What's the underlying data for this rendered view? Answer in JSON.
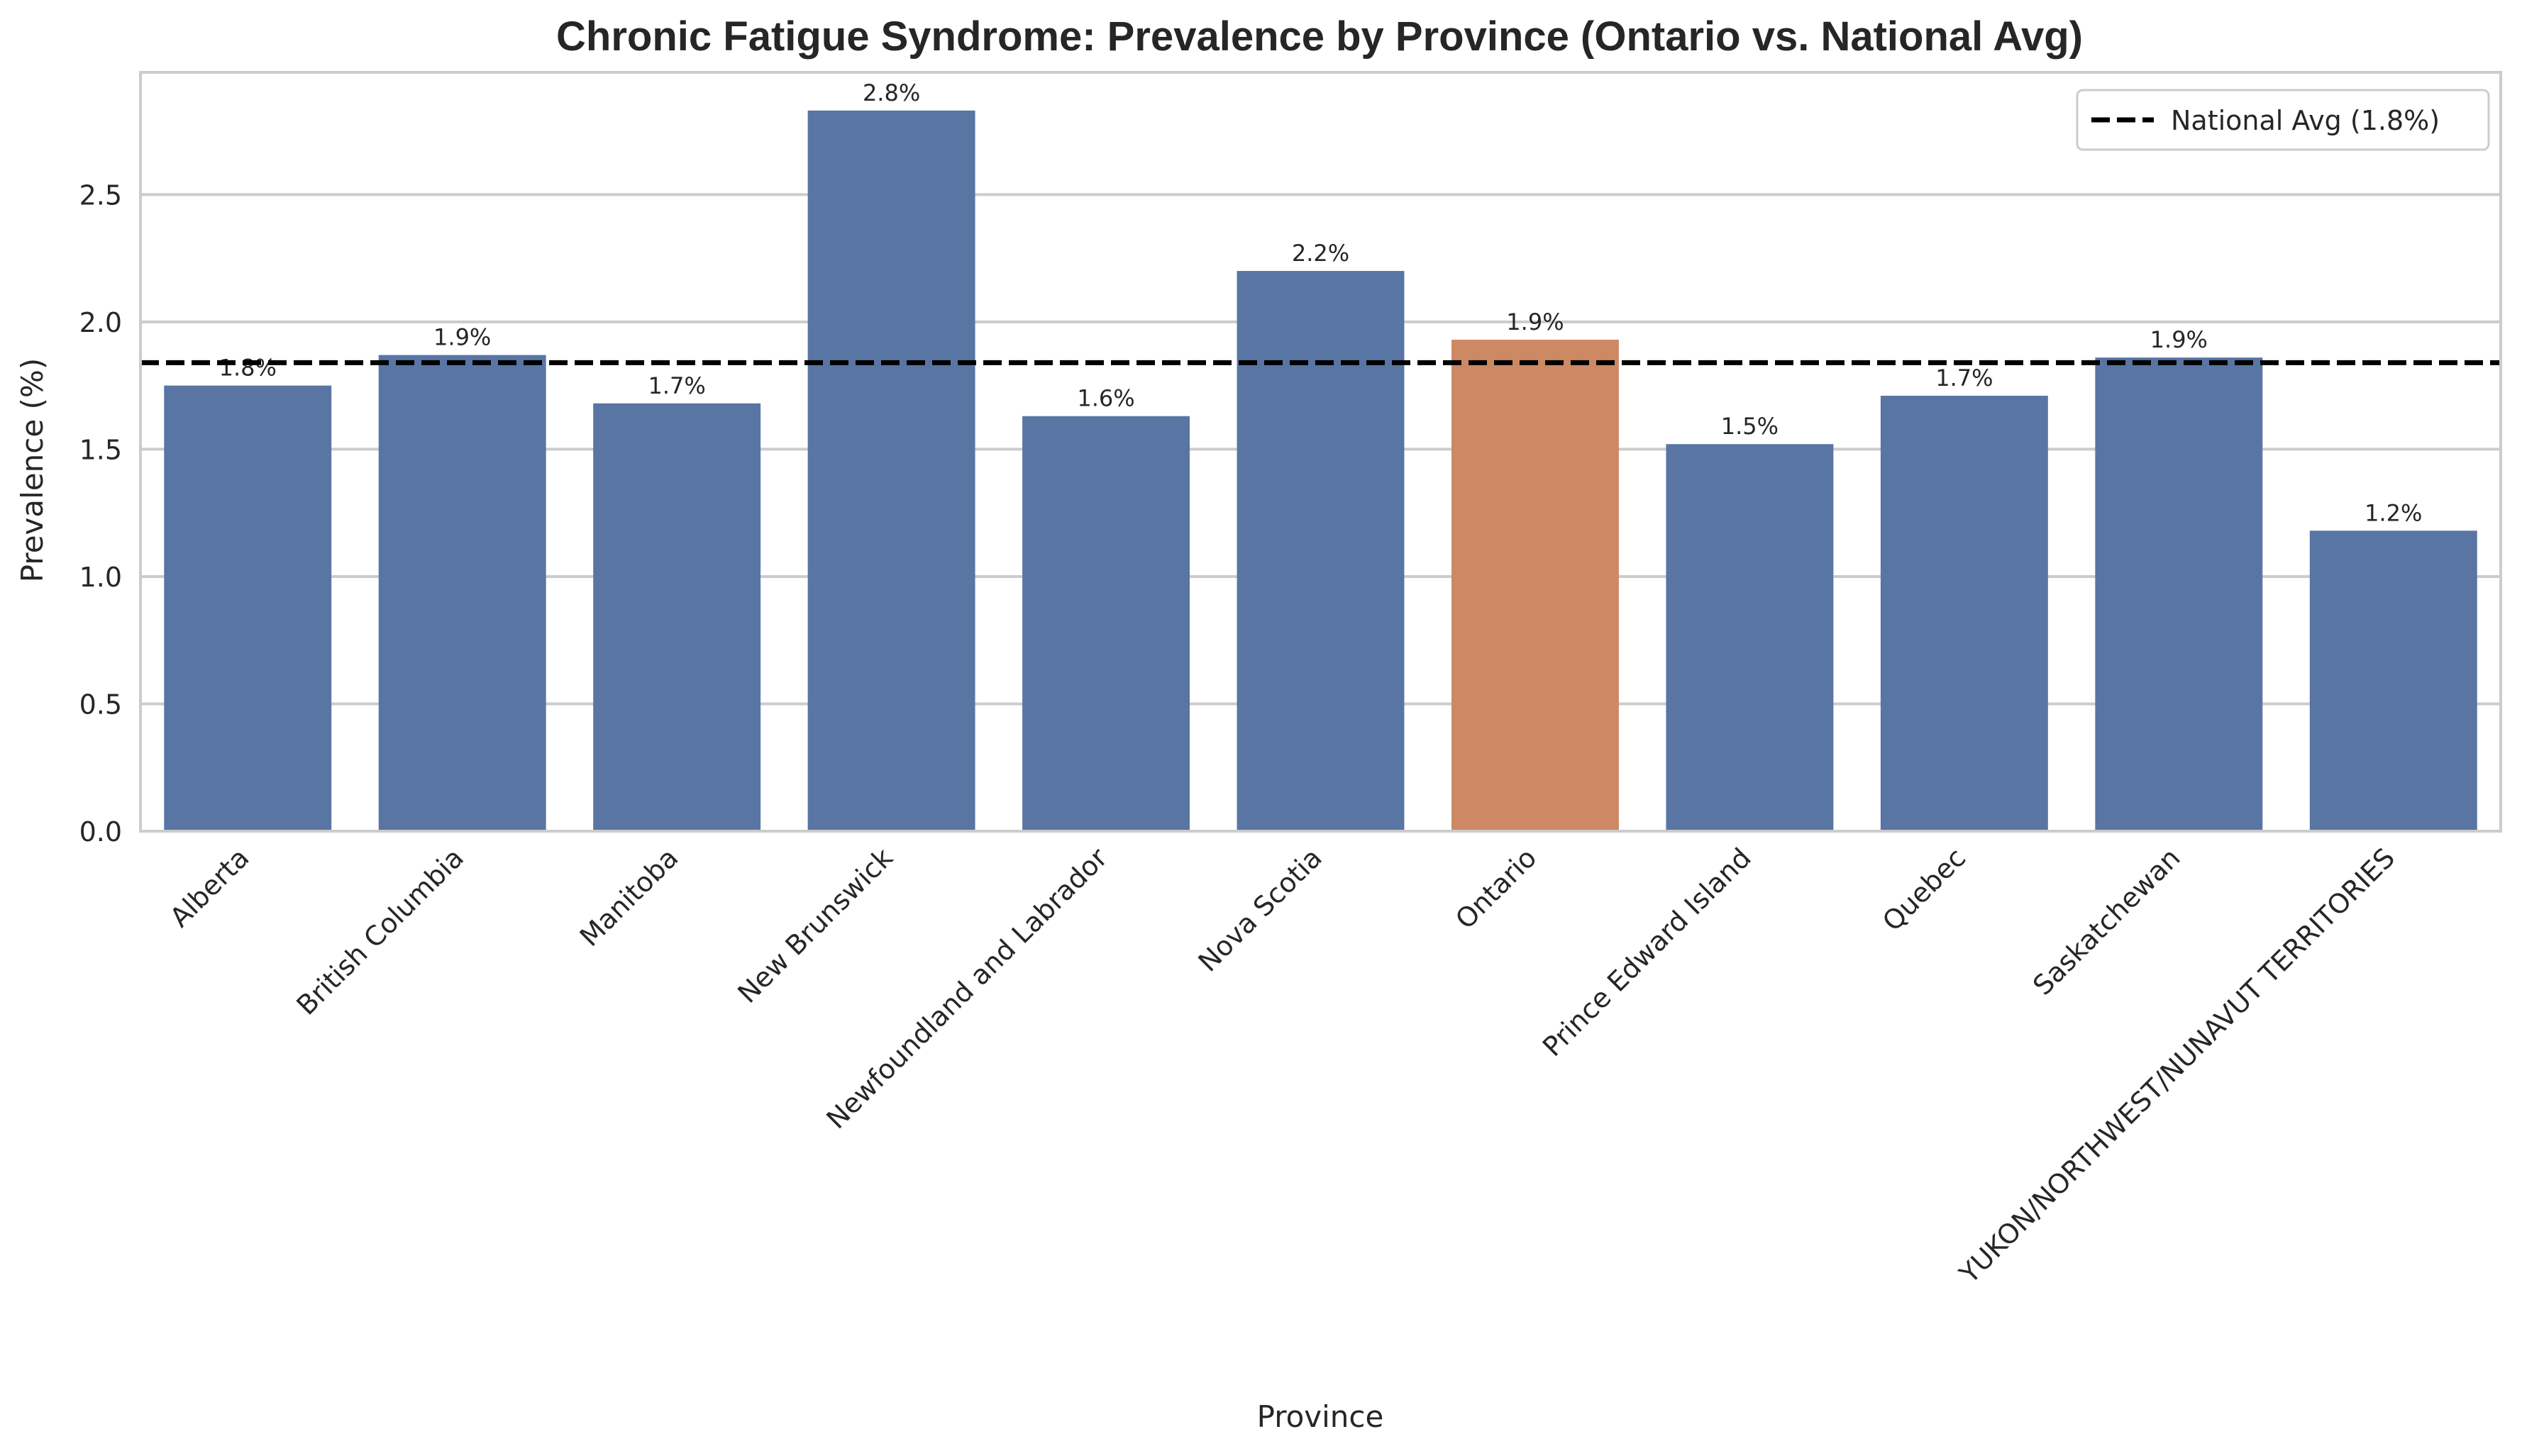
{
  "chart_data": {
    "type": "bar",
    "title": "Chronic Fatigue Syndrome: Prevalence by Province (Ontario vs. National Avg)",
    "xlabel": "Province",
    "ylabel": "Prevalence (%)",
    "ylim": [
      0,
      2.98
    ],
    "yticks": [
      "0.0",
      "0.5",
      "1.0",
      "1.5",
      "2.0",
      "2.5"
    ],
    "grid": "horizontal",
    "categories": [
      "Alberta",
      "British Columbia",
      "Manitoba",
      "New Brunswick",
      "Newfoundland and Labrador",
      "Nova Scotia",
      "Ontario",
      "Prince Edward Island",
      "Quebec",
      "Saskatchewan",
      "YUKON/NORTHWEST/NUNAVUT TERRITORIES"
    ],
    "values": [
      1.75,
      1.87,
      1.68,
      2.83,
      1.63,
      2.2,
      1.93,
      1.52,
      1.71,
      1.86,
      1.18
    ],
    "data_labels": [
      "1.8%",
      "1.9%",
      "1.7%",
      "2.8%",
      "1.6%",
      "2.2%",
      "1.9%",
      "1.5%",
      "1.7%",
      "1.9%",
      "1.2%"
    ],
    "highlight_category": "Ontario",
    "colors": {
      "default": "#5975a4",
      "highlight": "#cc8963",
      "reference_line": "#000000",
      "grid": "#cccccc",
      "axes": "#cccccc"
    },
    "reference_line": {
      "value": 1.84,
      "label": "National Avg (1.8%)",
      "style": "dashed"
    },
    "legend": {
      "position": "top-right",
      "entries": [
        "National Avg (1.8%)"
      ]
    }
  }
}
